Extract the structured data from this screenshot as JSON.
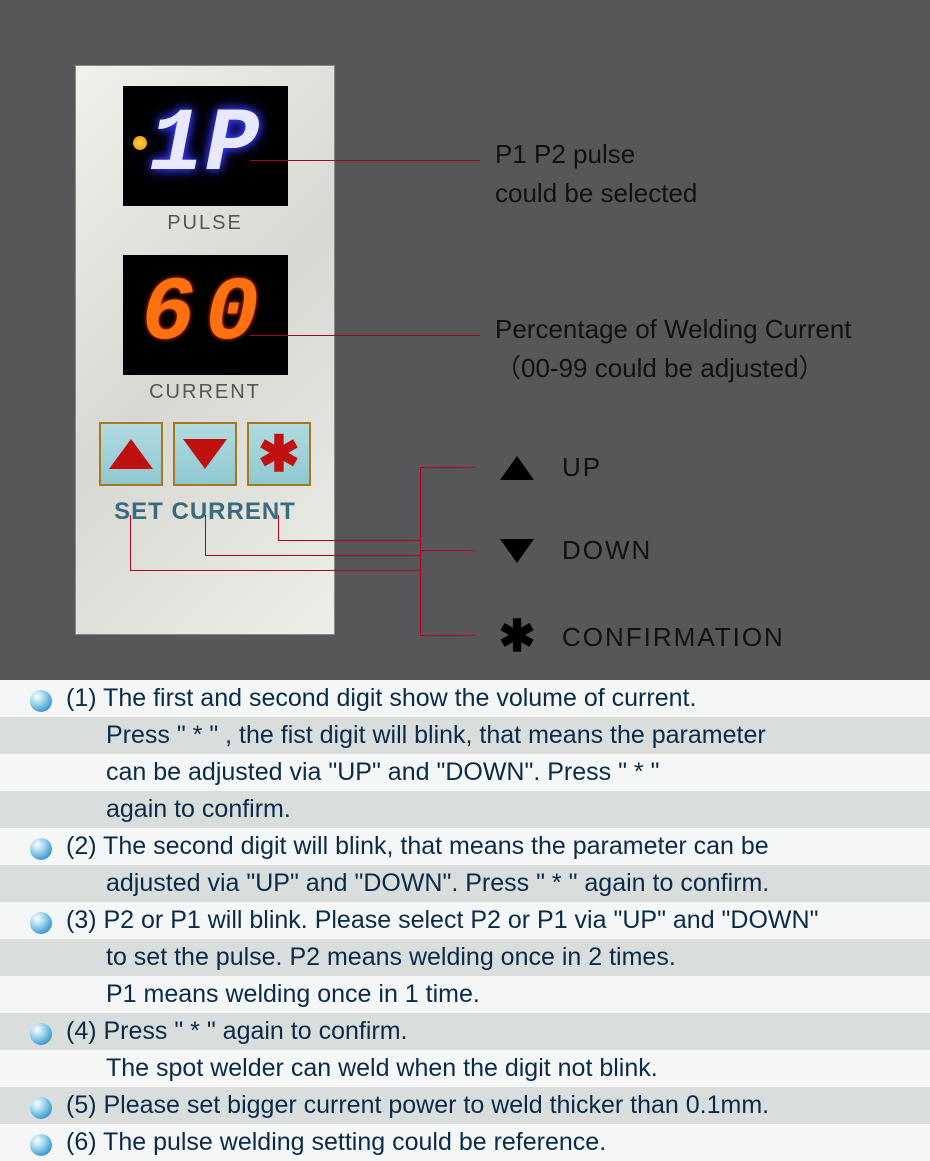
{
  "panel": {
    "pulse_display": "1P",
    "pulse_label": "PULSE",
    "current_display": "60",
    "current_label": "CURRENT",
    "set_label": "SET CURRENT",
    "buttons": {
      "up_color": "#c01010",
      "down_color": "#c01010",
      "star_color": "#c01010",
      "bg_color": "#9ed0d8",
      "border_color": "#a87820"
    },
    "pulse_led_color": "#4040ff",
    "current_led_color": "#ff6000"
  },
  "callouts": {
    "pulse": "P1 P2  pulse\ncould  be  selected",
    "current": "Percentage of Welding Current\n（00-99  could  be  adjusted）",
    "legend": [
      {
        "name": "up-icon",
        "label": "UP"
      },
      {
        "name": "down-icon",
        "label": "DOWN"
      },
      {
        "name": "asterisk-icon",
        "label": "CONFIRMATION"
      }
    ]
  },
  "leader_color": "#b00020",
  "instructions": [
    {
      "n": "(1)",
      "lines": [
        "The first and second digit show the volume of current.",
        "Press \"  * \" , the fist digit will blink, that means the parameter",
        "can be adjusted via \"UP\" and \"DOWN\". Press \"  *  \"",
        "again to confirm."
      ]
    },
    {
      "n": "(2)",
      "lines": [
        "The second digit will blink, that means the parameter can be",
        "adjusted via \"UP\" and \"DOWN\". Press \"  * \" again to confirm."
      ]
    },
    {
      "n": "(3)",
      "lines": [
        "P2 or P1 will blink. Please select P2 or P1 via \"UP\" and \"DOWN\"",
        "to set the pulse. P2 means welding once in 2 times.",
        "P1 means welding once in 1 time."
      ]
    },
    {
      "n": "(4)",
      "lines": [
        "Press \"  * \" again to confirm.",
        "The spot welder can weld when the digit not blink."
      ]
    },
    {
      "n": "(5)",
      "lines": [
        "Please set bigger current power to weld thicker than 0.1mm."
      ]
    },
    {
      "n": "(6)",
      "lines": [
        "The pulse welding setting could be reference."
      ]
    }
  ],
  "colors": {
    "top_bg": "#575759",
    "panel_bg": "#e8e8e0",
    "instr_bg": "#f5f7f6",
    "instr_alt_bg": "#d9dedc",
    "instr_text": "#0a2a4a"
  }
}
